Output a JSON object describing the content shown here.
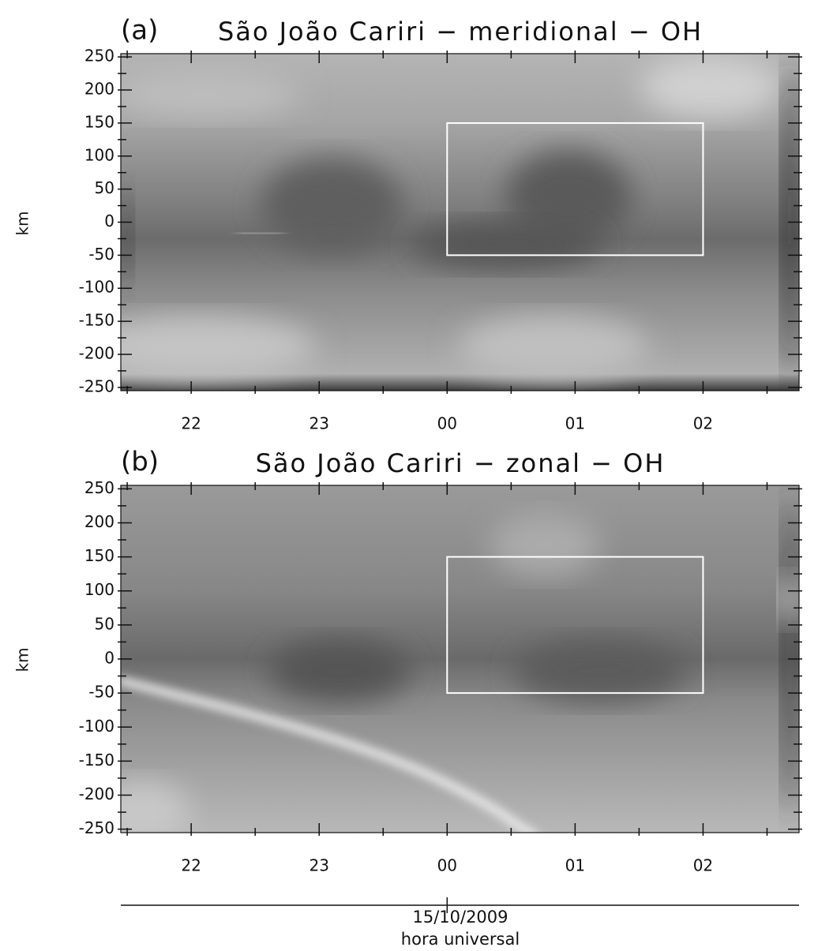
{
  "chart_data": [
    {
      "type": "heatmap",
      "panel_label": "(a)",
      "title": "São João Cariri − meridional − OH",
      "ylabel": "km",
      "xlim": [
        21.45,
        26.75
      ],
      "ylim": [
        -255,
        255
      ],
      "xticks": [
        22,
        23,
        {
          "value": 24,
          "label": "00"
        },
        {
          "value": 25,
          "label": "01"
        },
        {
          "value": 26,
          "label": "02"
        }
      ],
      "xminorticks": [
        21.5,
        22.5,
        23.5,
        24.5,
        25.5,
        26.5
      ],
      "yticks": [
        -250,
        -200,
        -150,
        -100,
        -50,
        0,
        50,
        100,
        150,
        200,
        250
      ],
      "yminorticks": [
        -225,
        -175,
        -125,
        -75,
        -25,
        25,
        75,
        125,
        175,
        225
      ],
      "box": {
        "x": [
          24,
          26
        ],
        "y": [
          -50,
          150
        ],
        "color": "#ffffff"
      }
    },
    {
      "type": "heatmap",
      "panel_label": "(b)",
      "title": "São João Cariri − zonal − OH",
      "ylabel": "km",
      "xlim": [
        21.45,
        26.75
      ],
      "ylim": [
        -255,
        255
      ],
      "xticks": [
        22,
        23,
        {
          "value": 24,
          "label": "00"
        },
        {
          "value": 25,
          "label": "01"
        },
        {
          "value": 26,
          "label": "02"
        }
      ],
      "xminorticks": [
        21.5,
        22.5,
        23.5,
        24.5,
        25.5,
        26.5
      ],
      "yticks": [
        -250,
        -200,
        -150,
        -100,
        -50,
        0,
        50,
        100,
        150,
        200,
        250
      ],
      "yminorticks": [
        -225,
        -175,
        -125,
        -75,
        -25,
        25,
        75,
        125,
        175,
        225
      ],
      "box": {
        "x": [
          24,
          26
        ],
        "y": [
          -50,
          150
        ],
        "color": "#ffffff"
      },
      "date_label": "15/10/2009",
      "xlabel": "hora universal"
    }
  ]
}
